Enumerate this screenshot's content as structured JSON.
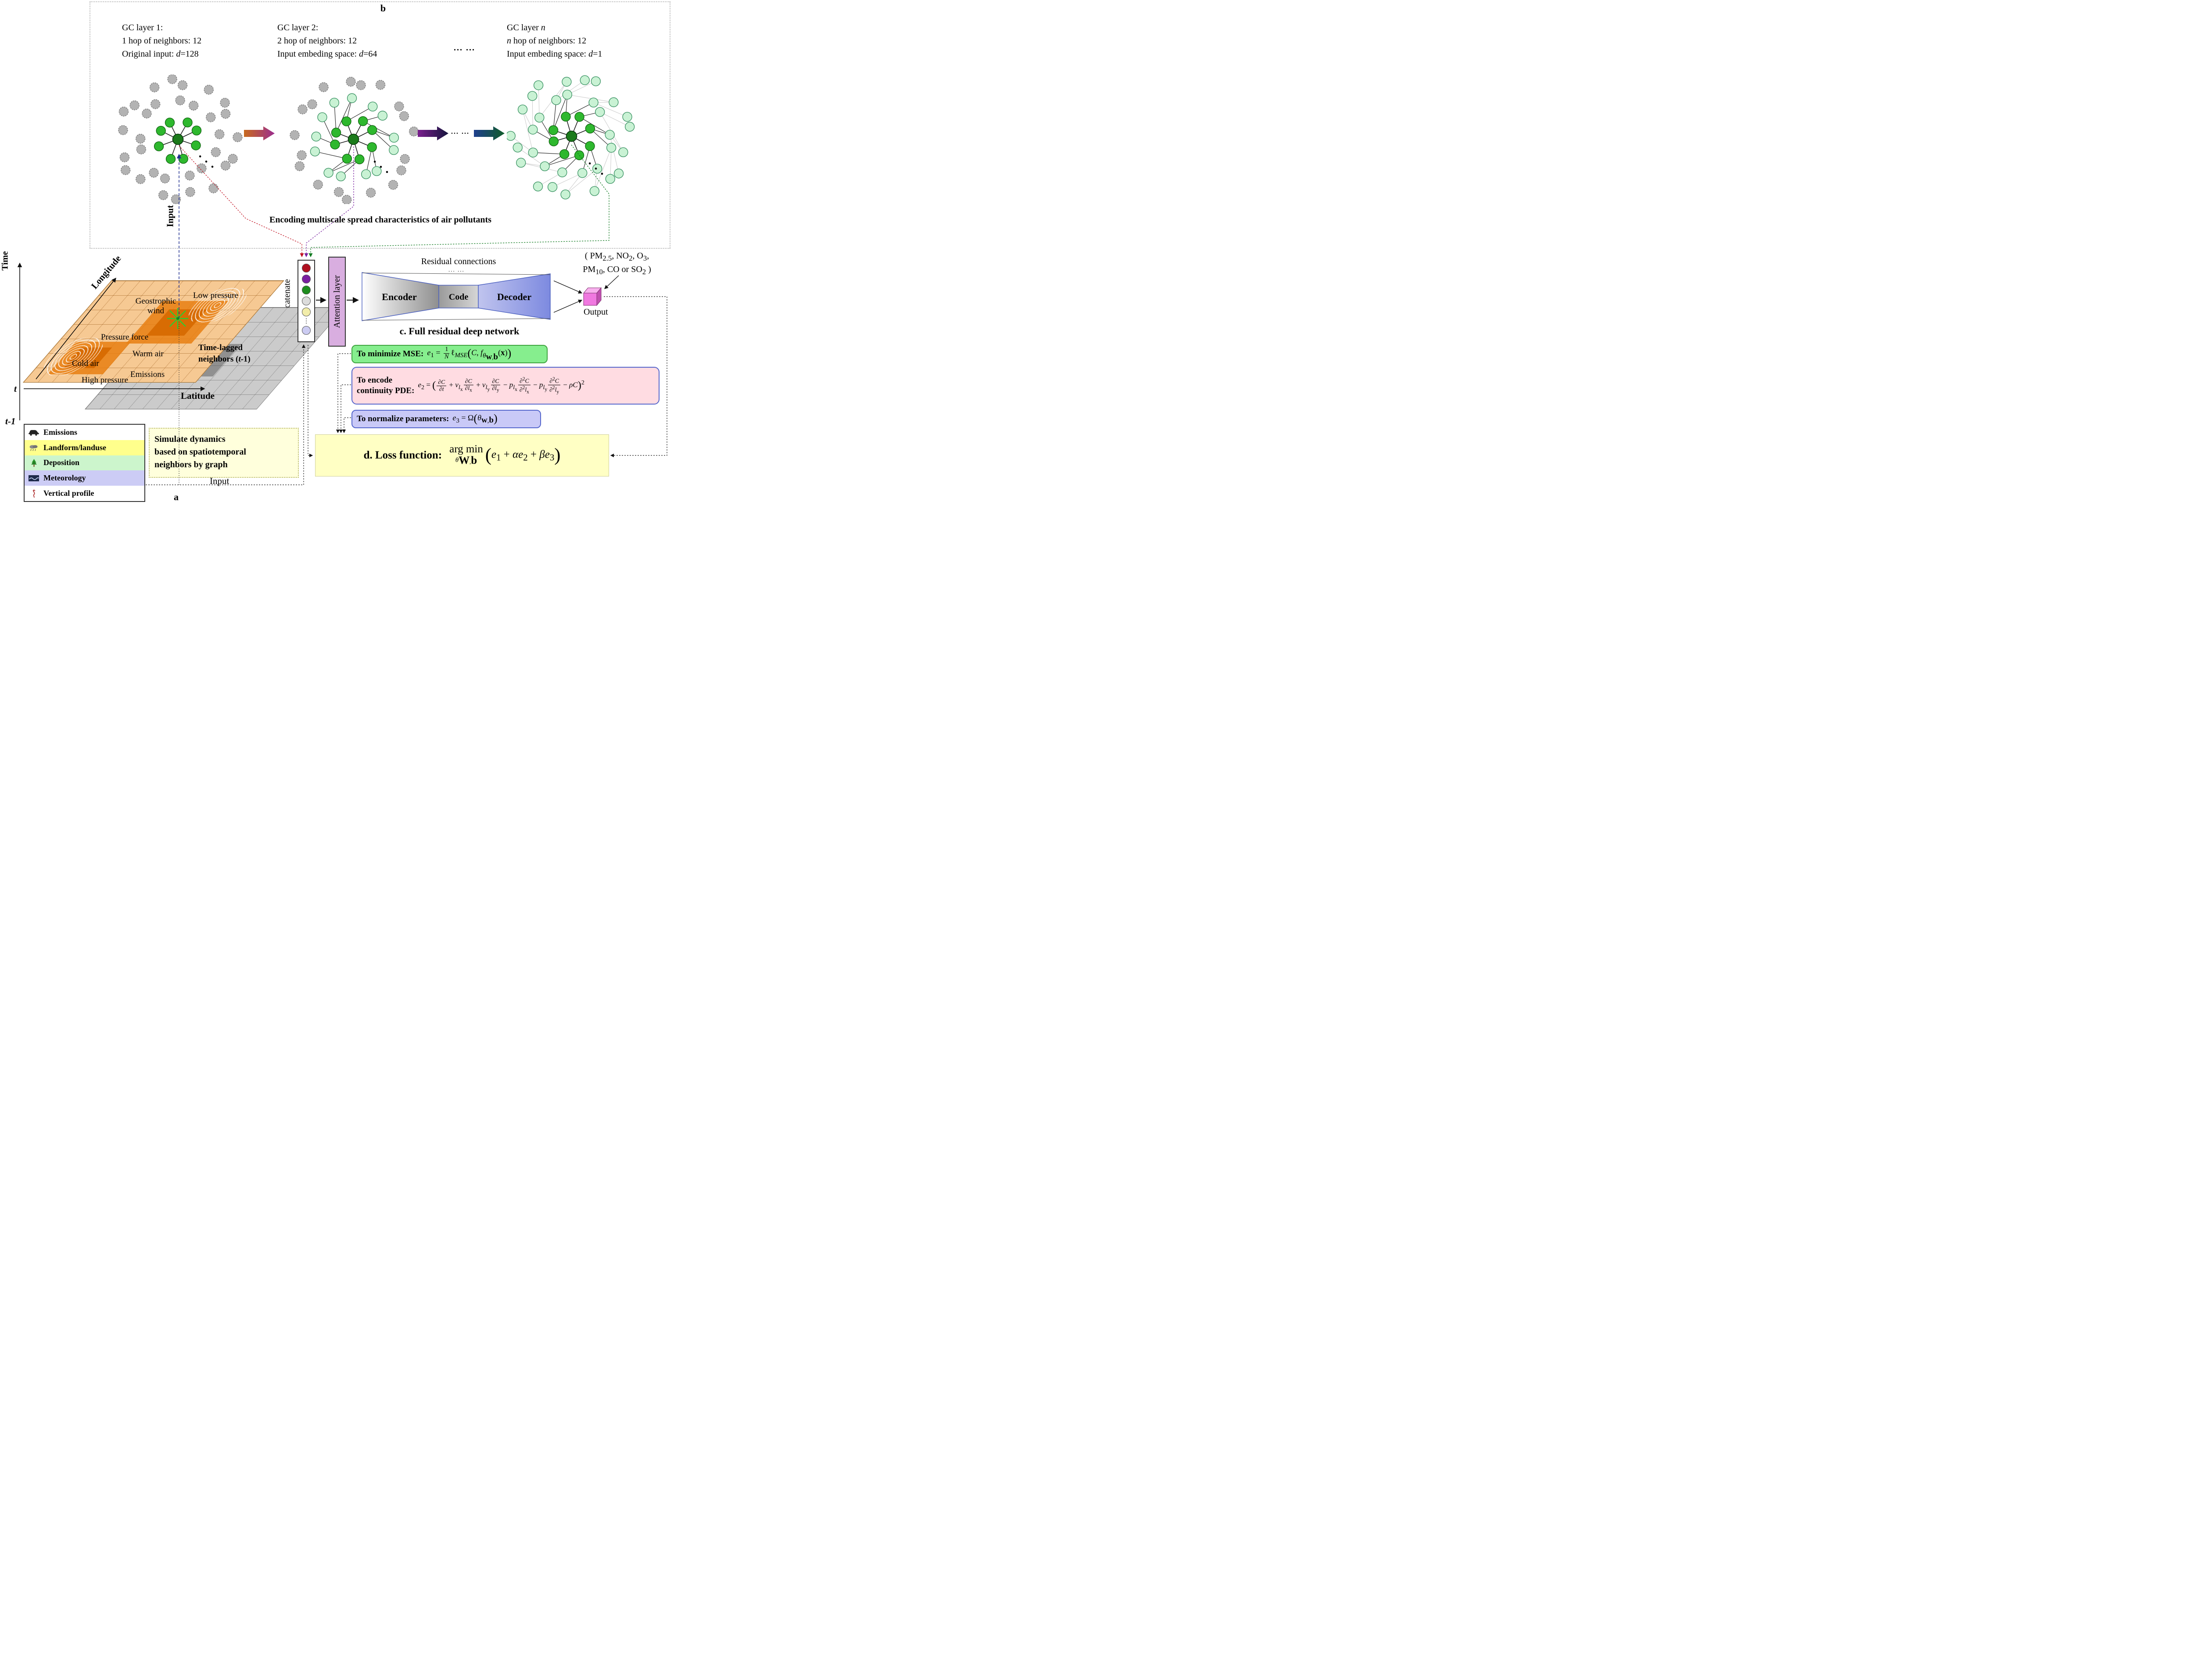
{
  "panel_b": {
    "label": "b",
    "layers": [
      {
        "l1_html": "GC layer 1:",
        "l2_html": "1 hop of neighbors: 12",
        "l3_html": "Original input: <i>d</i>=128"
      },
      {
        "l1_html": "GC layer 2:",
        "l2_html": "2 hop of neighbors: 12",
        "l3_html": "Input embeding space: <i>d</i>=64"
      },
      {
        "l1_html": "GC layer  <i>n</i>",
        "l2_html": "<i>n</i> hop of neighbors: 12",
        "l3_html": "Input embeding space: <i>d</i>=1"
      }
    ],
    "title_dots": "... ...",
    "arrow_dots": "... ...",
    "caption": "Encoding multiscale spread characteristics of air pollutants",
    "input_label": "Input",
    "graph_dots": "• • •"
  },
  "graphs": {
    "colors": {
      "center": "#1b7a1b",
      "green": "#2eb82e",
      "green_stroke": "#116611",
      "mint": "#c9f2d4",
      "mint_stroke": "#3d9465",
      "gray": "#b3b3b3",
      "gray_stroke": "#787878",
      "edge": "#1a1a1a",
      "edge_light": "#c9c9c9"
    },
    "ring_counts": [
      8,
      13,
      19
    ],
    "ring_radii": [
      45,
      90,
      131
    ],
    "node_r": 10.5,
    "layers": [
      {
        "rings": [
          "green",
          "gray",
          "gray"
        ],
        "edge_level": 1
      },
      {
        "rings": [
          "green",
          "mint",
          "gray"
        ],
        "edge_level": 2
      },
      {
        "rings": [
          "green",
          "mint",
          "mint"
        ],
        "edge_level": 3
      }
    ]
  },
  "panel_a": {
    "label": "a",
    "time": "Time",
    "longitude": "Longitude",
    "latitude": "Latitude",
    "t": "t",
    "t_minus": "t-1",
    "geostrophic": "Geostrophic wind",
    "low_pressure": "Low  pressure",
    "pressure_force": "Pressure force",
    "warm_air": "Warm air",
    "cold_air": "Cold air",
    "high_pressure": "High pressure",
    "emissions": "Emissions",
    "time_lagged_html": "Time-lagged<br>neighbors (<i>t</i>-1)",
    "legend": [
      {
        "label": "Emissions",
        "bg": "#ffffff",
        "icon": "car-icon"
      },
      {
        "label": "Landform/landuse",
        "bg": "#ffff8c",
        "icon": "rain-cloud-icon"
      },
      {
        "label": "Deposition",
        "bg": "#ccf5cc",
        "icon": "tree-icon"
      },
      {
        "label": "Meteorology",
        "bg": "#ccccf5",
        "icon": "meteorology-icon"
      },
      {
        "label": "Vertical profile",
        "bg": "#ffffff",
        "icon": "vertical-profile-icon"
      }
    ],
    "note_html": "Simulate dynamics<br>based on spatiotemporal<br>neighbors by graph",
    "input_label": "Input"
  },
  "panel_c": {
    "concatenate": "Concatenate",
    "attention": "Attention layer",
    "residual": "Residual connections",
    "residual_dots": "... ...",
    "encoder": "Encoder",
    "code": "Code",
    "decoder": "Decoder",
    "dots": [
      "#b01020",
      "#7a1fa0",
      "#1e8c1e",
      "#dcdcdc",
      "#f2edaa",
      "VDOTS",
      "#ccccf2"
    ],
    "pollutants_html": "( PM<sub>2.5</sub>, NO<sub>2</sub>, O<sub>3</sub>,<br>PM<sub>10</sub>, CO or SO<sub>2</sub> )",
    "output": "Output",
    "caption": "c. Full residual deep network"
  },
  "panel_d": {
    "mse_label": "To minimize MSE:",
    "mse_html": "<i>e</i><sub>1</sub> = <span class=\"frac\"><span class=\"ft\">1</span><span class=\"fb\"><i>N</i></span></span>ℓ<sub><i>MSE</i></sub><span class=\"bp\">(</span><i>C</i>, <i>f</i><sub><i>θ</i><sub><b>w</b>,<b>b</b></sub></sub>(<b>x</b>)<span class=\"bp\">)</span>",
    "pde_label_html": "To encode<br><b>continuity PDE:</b>",
    "pde_html": "<i>e</i><sub>2</sub> = <span class=\"bp\">(</span><span class=\"frac\"><span class=\"ft\">∂<i>C</i></span><span class=\"fb\">∂<i>t</i></span></span> + <i>v</i><sub><i>l</i><sub>x</sub></sub><span class=\"frac\"><span class=\"ft\">∂<i>C</i></span><span class=\"fb\">∂<i>l</i><sub>x</sub></span></span> + <i>v</i><sub><i>l</i><sub>y</sub></sub><span class=\"frac\"><span class=\"ft\">∂<i>C</i></span><span class=\"fb\">∂<i>l</i><sub>y</sub></span></span> − <i>p</i><sub><i>l</i><sub>x</sub></sub><span class=\"frac\"><span class=\"ft\">∂<sup>2</sup><i>C</i></span><span class=\"fb\">∂<sup>2</sup><i>l</i><sub>x</sub></span></span> − <i>p</i><sub><i>l</i><sub>y</sub></sub><span class=\"frac\"><span class=\"ft\">∂<sup>2</sup><i>C</i></span><span class=\"fb\">∂<sup>2</sup><i>l</i><sub>y</sub></span></span> − <i>ρC</i><span class=\"bp\">)</span><sup>2</sup>",
    "norm_label": "To normalize parameters:",
    "norm_html": "<i>e</i><sub>3</sub> = Ω<span class=\"bp\">(</span><i>θ</i><sub><b>w</b>,<b>b</b></sub><span class=\"bp\">)</span>",
    "loss_label": "d. Loss function:",
    "loss_html": "<span class=\"am\"><span class=\"amt\">arg min</span><span class=\"amb\"><i>θ</i><sub><b>W</b>,<b>b</b></sub></span></span><span class=\"bp2\">(</span><i>e</i><sub>1</sub> + <i>αe</i><sub>2</sub> + <i>βe</i><sub>3</sub><span class=\"bp2\">)</span>"
  }
}
